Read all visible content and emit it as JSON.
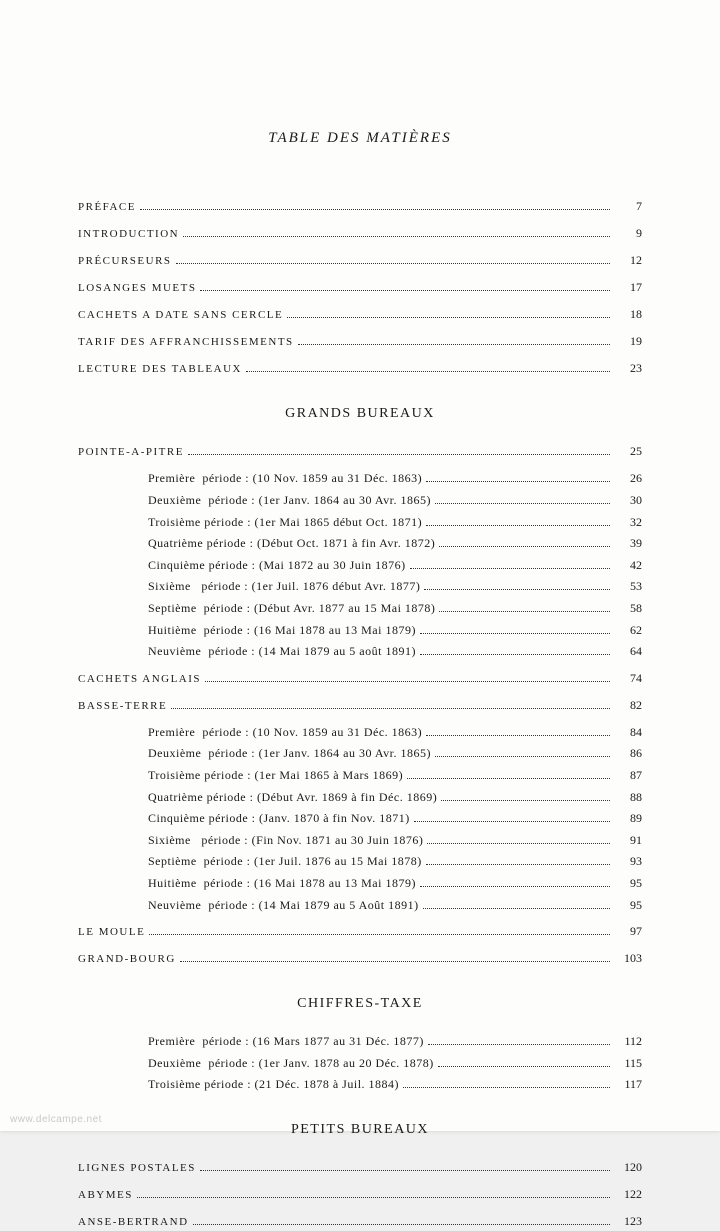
{
  "title": "TABLE DES MATIÈRES",
  "watermark": "www.delcampe.net",
  "front": [
    {
      "label": "PRÉFACE",
      "page": "7"
    },
    {
      "label": "INTRODUCTION",
      "page": "9"
    },
    {
      "label": "PRÉCURSEURS",
      "page": "12"
    },
    {
      "label": "LOSANGES MUETS",
      "page": "17"
    },
    {
      "label": "CACHETS A DATE SANS CERCLE",
      "page": "18"
    },
    {
      "label": "TARIF DES AFFRANCHISSEMENTS",
      "page": "19"
    },
    {
      "label": "LECTURE DES TABLEAUX",
      "page": "23"
    }
  ],
  "sections": [
    {
      "heading": "GRANDS BUREAUX",
      "groups": [
        {
          "label": "POINTE-A-PITRE",
          "page": "25",
          "items": [
            {
              "ord": "Première",
              "range": "(10 Nov. 1859 au 31 Déc. 1863)",
              "page": "26"
            },
            {
              "ord": "Deuxième",
              "range": "(1er Janv. 1864 au 30 Avr. 1865)",
              "page": "30"
            },
            {
              "ord": "Troisième",
              "range": "(1er Mai 1865 début Oct. 1871)",
              "page": "32"
            },
            {
              "ord": "Quatrième",
              "range": "(Début Oct. 1871 à fin Avr. 1872)",
              "page": "39"
            },
            {
              "ord": "Cinquième",
              "range": "(Mai 1872 au 30 Juin 1876)",
              "page": "42"
            },
            {
              "ord": "Sixième",
              "range": "(1er Juil. 1876 début Avr. 1877)",
              "page": "53"
            },
            {
              "ord": "Septième",
              "range": "(Début Avr. 1877 au 15 Mai 1878)",
              "page": "58"
            },
            {
              "ord": "Huitième",
              "range": "(16 Mai 1878 au 13 Mai 1879)",
              "page": "62"
            },
            {
              "ord": "Neuvième",
              "range": "(14 Mai 1879 au 5 août 1891)",
              "page": "64"
            }
          ]
        },
        {
          "label": "CACHETS ANGLAIS",
          "page": "74",
          "items": []
        },
        {
          "label": "BASSE-TERRE",
          "page": "82",
          "items": [
            {
              "ord": "Première",
              "range": "(10 Nov. 1859 au 31 Déc. 1863)",
              "page": "84"
            },
            {
              "ord": "Deuxième",
              "range": "(1er Janv. 1864 au 30 Avr. 1865)",
              "page": "86"
            },
            {
              "ord": "Troisième",
              "range": "(1er Mai 1865 à Mars 1869)",
              "page": "87"
            },
            {
              "ord": "Quatrième",
              "range": "(Début Avr. 1869 à fin Déc. 1869)",
              "page": "88"
            },
            {
              "ord": "Cinquième",
              "range": "(Janv. 1870 à fin Nov. 1871)",
              "page": "89"
            },
            {
              "ord": "Sixième",
              "range": "(Fin Nov. 1871 au 30 Juin 1876)",
              "page": "91"
            },
            {
              "ord": "Septième",
              "range": "(1er Juil. 1876 au 15 Mai 1878)",
              "page": "93"
            },
            {
              "ord": "Huitième",
              "range": "(16 Mai 1878 au 13 Mai 1879)",
              "page": "95"
            },
            {
              "ord": "Neuvième",
              "range": "(14 Mai 1879 au 5 Août 1891)",
              "page": "95"
            }
          ]
        },
        {
          "label": "LE MOULE",
          "page": "97",
          "items": []
        },
        {
          "label": "GRAND-BOURG",
          "page": "103",
          "items": []
        }
      ]
    },
    {
      "heading": "CHIFFRES-TAXE",
      "groups": [
        {
          "label": "",
          "page": "",
          "items": [
            {
              "ord": "Première",
              "range": "(16 Mars 1877 au 31 Déc. 1877)",
              "page": "112"
            },
            {
              "ord": "Deuxième",
              "range": "(1er Janv. 1878 au 20 Déc. 1878)",
              "page": "115"
            },
            {
              "ord": "Troisième",
              "range": "(21 Déc. 1878 à Juil. 1884)",
              "page": "117"
            }
          ]
        }
      ]
    },
    {
      "heading": "PETITS BUREAUX",
      "groups": [
        {
          "label": "LIGNES POSTALES",
          "page": "120",
          "items": []
        },
        {
          "label": "ABYMES",
          "page": "122",
          "items": []
        },
        {
          "label": "ANSE-BERTRAND",
          "page": "123",
          "items": []
        }
      ]
    }
  ]
}
